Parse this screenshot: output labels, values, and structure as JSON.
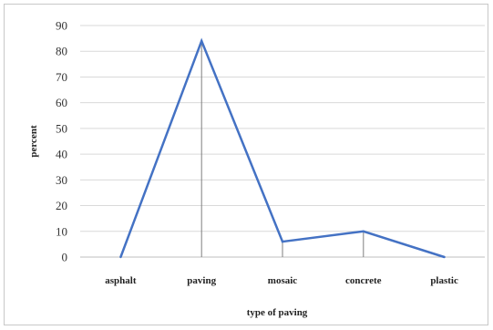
{
  "chart_data": {
    "type": "line",
    "title": "",
    "xlabel": "type of paving",
    "ylabel": "percent",
    "categories": [
      "asphalt",
      "paving",
      "mosaic",
      "concrete",
      "plastic"
    ],
    "series": [
      {
        "values": [
          0,
          84,
          6,
          10,
          0
        ]
      }
    ],
    "ylim": [
      0,
      90
    ],
    "yticks": [
      0,
      10,
      20,
      30,
      40,
      50,
      60,
      70,
      80,
      90
    ],
    "grid": true,
    "legend": "none",
    "colors": {
      "line": "#4472c4",
      "grid": "#d9d9d9",
      "drop_lines": "#7f7f7f",
      "axis": "#bfbfbf"
    }
  }
}
